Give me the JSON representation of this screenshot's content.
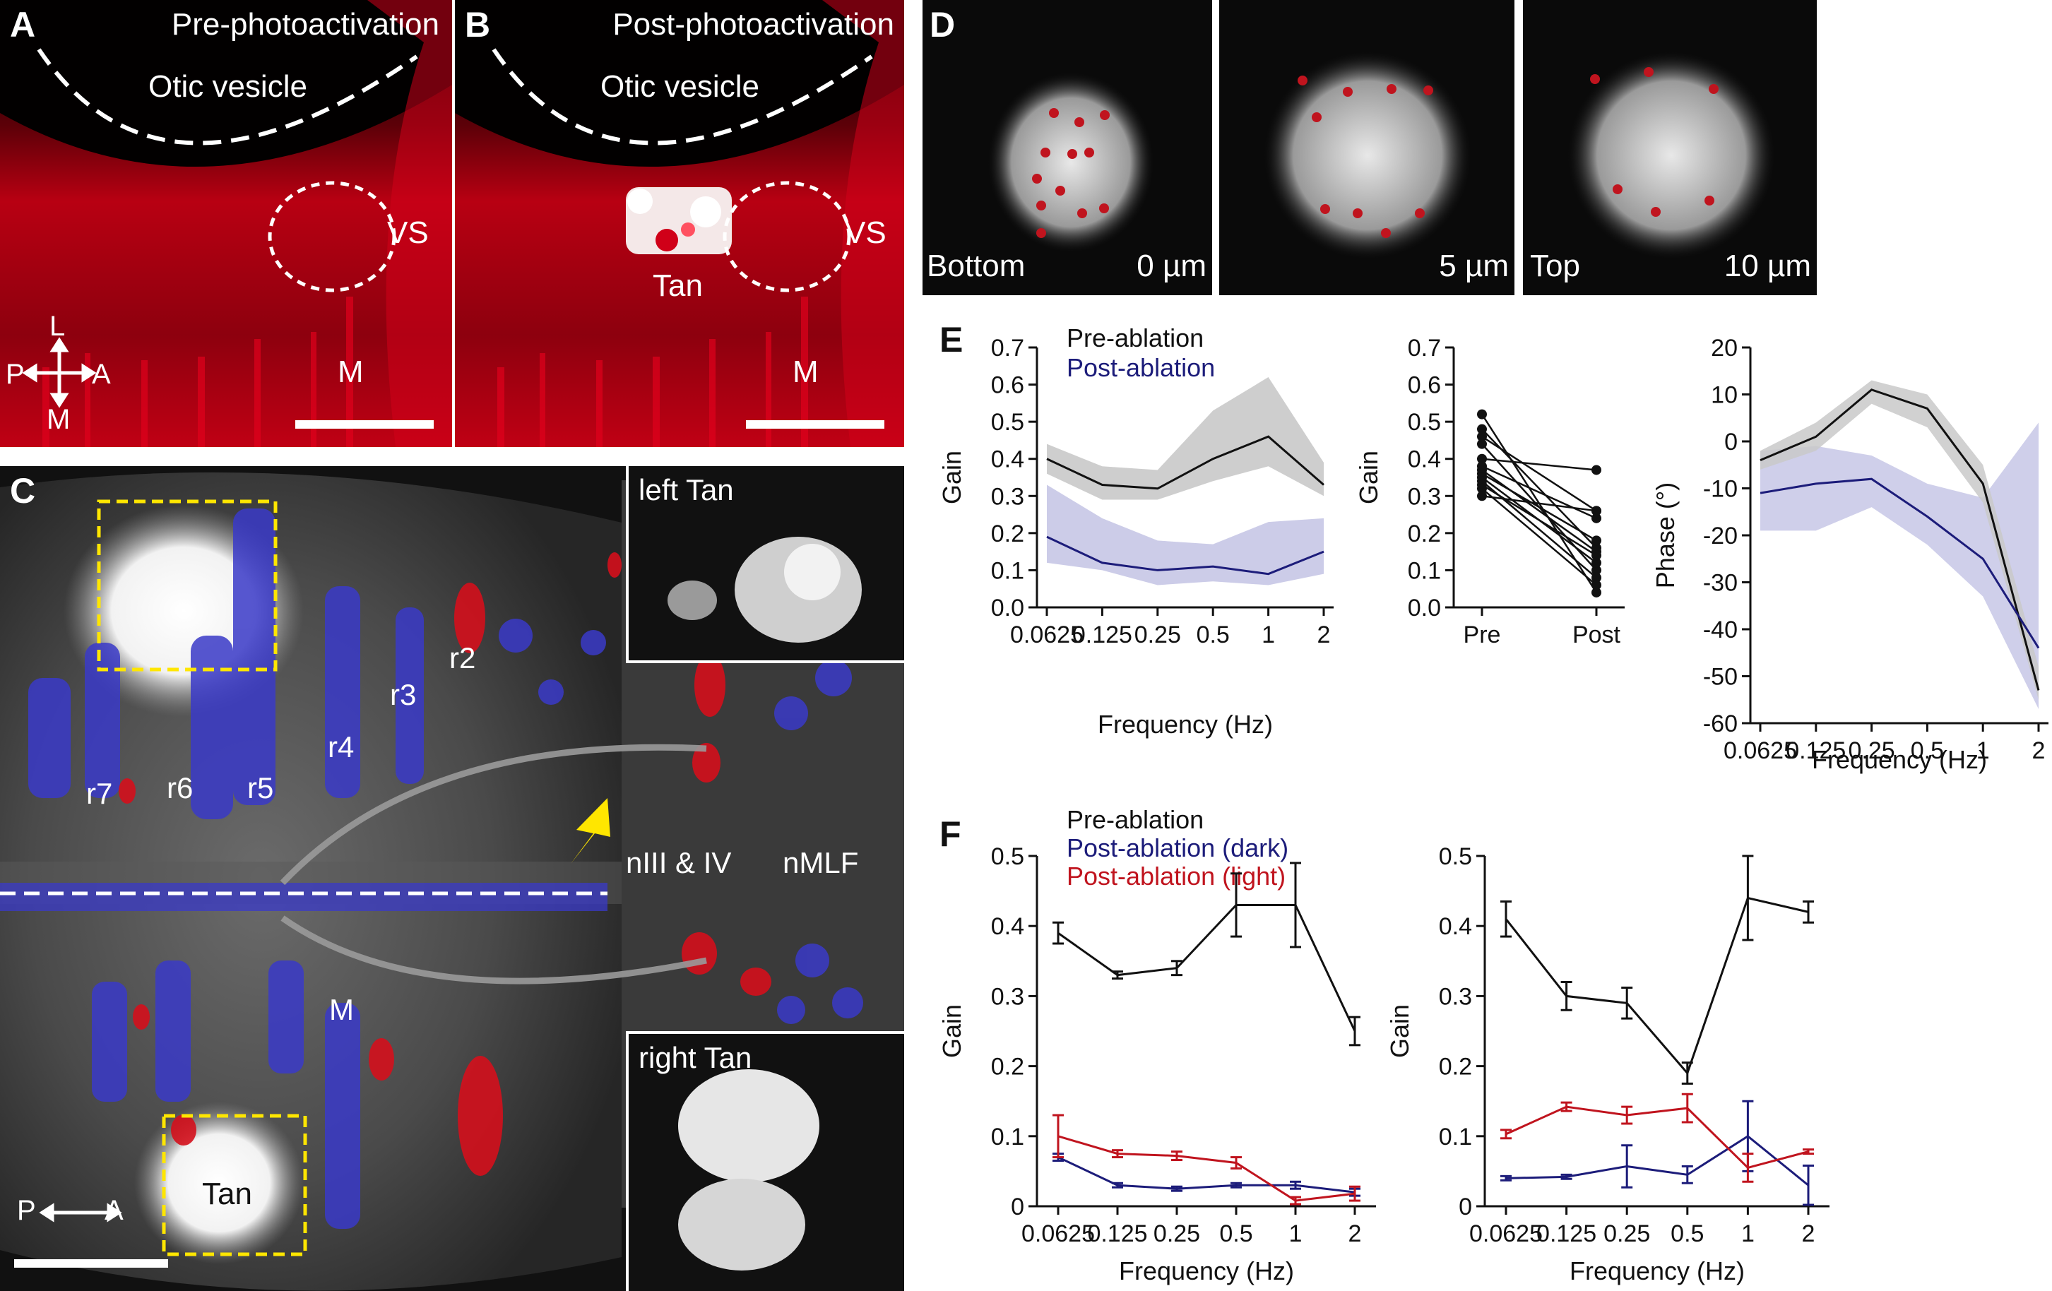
{
  "panelA": {
    "letter": "A",
    "title": "Pre-photoactivation",
    "otic": "Otic vesicle",
    "vs": "VS",
    "m": "M",
    "axisL": "L",
    "axisP": "P",
    "axisA": "A",
    "axisM": "M"
  },
  "panelB": {
    "letter": "B",
    "title": "Post-photoactivation",
    "otic": "Otic vesicle",
    "vs": "VS",
    "tan": "Tan",
    "m": "M"
  },
  "panelC": {
    "letter": "C",
    "r7": "r7",
    "r6": "r6",
    "r5": "r5",
    "r4": "r4",
    "r3": "r3",
    "r2": "r2",
    "niii": "nIII & IV",
    "nmlf": "nMLF",
    "m": "M",
    "tan": "Tan",
    "axisP": "P",
    "axisA": "A",
    "leftTan": "left Tan",
    "rightTan": "right Tan"
  },
  "panelD": {
    "letter": "D",
    "img1_left": "Bottom",
    "img1_right": "0 µm",
    "img2_right": "5 µm",
    "img3_left": "Top",
    "img3_right": "10 µm"
  },
  "colors": {
    "pre": "#111111",
    "postDark": "#1c1c7a",
    "postLight": "#c0141e",
    "preBand": "#c9c9c9",
    "postBand": "#c7c7e6",
    "red": "#d40f1c",
    "blue": "#3a3ac8",
    "yellow": "#ffe600"
  },
  "panelE": {
    "letter": "E",
    "legendPre": "Pre-ablation",
    "legendPost": "Post-ablation",
    "chart1": {
      "ylabel": "Gain",
      "xlabel": "Frequency (Hz)",
      "yticks": [
        "0.0",
        "0.1",
        "0.2",
        "0.3",
        "0.4",
        "0.5",
        "0.6",
        "0.7"
      ],
      "xticks": [
        "0.0625",
        "0.125",
        "0.25",
        "0.5",
        "1",
        "2"
      ]
    },
    "chart2": {
      "ylabel": "Gain",
      "xticks": [
        "Pre",
        "Post"
      ],
      "yticks": [
        "0.0",
        "0.1",
        "0.2",
        "0.3",
        "0.4",
        "0.5",
        "0.6",
        "0.7"
      ]
    },
    "chart3": {
      "ylabel": "Phase (°)",
      "xlabel": "Frequency (Hz)",
      "yticks": [
        "20",
        "10",
        "0",
        "-10",
        "-20",
        "-30",
        "-40",
        "-50",
        "-60"
      ],
      "xticks": [
        "0.0625",
        "0.125",
        "0.25",
        "0.5",
        "1",
        "2"
      ]
    }
  },
  "panelF": {
    "letter": "F",
    "legendPre": "Pre-ablation",
    "legendDark": "Post-ablation (dark)",
    "legendLight": "Post-ablation (light)",
    "chart1": {
      "ylabel": "Gain",
      "xlabel": "Frequency (Hz)",
      "yticks": [
        "0",
        "0.1",
        "0.2",
        "0.3",
        "0.4",
        "0.5"
      ],
      "xticks": [
        "0.0625",
        "0.125",
        "0.25",
        "0.5",
        "1",
        "2"
      ]
    },
    "chart2": {
      "ylabel": "Gain",
      "xlabel": "Frequency (Hz)",
      "yticks": [
        "0",
        "0.1",
        "0.2",
        "0.3",
        "0.4",
        "0.5"
      ],
      "xticks": [
        "0.0625",
        "0.125",
        "0.25",
        "0.5",
        "1",
        "2"
      ]
    }
  },
  "chart_data": [
    {
      "type": "line",
      "panel": "E-left",
      "xlabel": "Frequency (Hz)",
      "ylabel": "Gain",
      "ylim": [
        0,
        0.7
      ],
      "categories": [
        "0.0625",
        "0.125",
        "0.25",
        "0.5",
        "1",
        "2"
      ],
      "series": [
        {
          "name": "Pre-ablation",
          "values": [
            0.4,
            0.33,
            0.32,
            0.4,
            0.46,
            0.33
          ],
          "band_low": [
            0.36,
            0.29,
            0.29,
            0.34,
            0.38,
            0.3
          ],
          "band_high": [
            0.44,
            0.38,
            0.37,
            0.53,
            0.62,
            0.39
          ]
        },
        {
          "name": "Post-ablation",
          "values": [
            0.19,
            0.12,
            0.1,
            0.11,
            0.09,
            0.15
          ],
          "band_low": [
            0.12,
            0.1,
            0.06,
            0.07,
            0.06,
            0.09
          ],
          "band_high": [
            0.33,
            0.24,
            0.18,
            0.17,
            0.23,
            0.24
          ]
        }
      ]
    },
    {
      "type": "line",
      "panel": "E-middle",
      "ylabel": "Gain",
      "ylim": [
        0,
        0.7
      ],
      "categories": [
        "Pre",
        "Post"
      ],
      "pairs": [
        [
          0.52,
          0.04
        ],
        [
          0.48,
          0.16
        ],
        [
          0.46,
          0.26
        ],
        [
          0.44,
          0.1
        ],
        [
          0.4,
          0.37
        ],
        [
          0.38,
          0.24
        ],
        [
          0.37,
          0.15
        ],
        [
          0.36,
          0.18
        ],
        [
          0.35,
          0.12
        ],
        [
          0.34,
          0.08
        ],
        [
          0.33,
          0.14
        ],
        [
          0.32,
          0.06
        ],
        [
          0.3,
          0.26
        ]
      ]
    },
    {
      "type": "line",
      "panel": "E-right",
      "xlabel": "Frequency (Hz)",
      "ylabel": "Phase (°)",
      "ylim": [
        -60,
        20
      ],
      "categories": [
        "0.0625",
        "0.125",
        "0.25",
        "0.5",
        "1",
        "2"
      ],
      "series": [
        {
          "name": "Pre-ablation",
          "values": [
            -4,
            1,
            11,
            7,
            -9,
            -53
          ],
          "band_low": [
            -6,
            -2,
            8,
            3,
            -13,
            -55
          ],
          "band_high": [
            -2,
            4,
            13,
            10,
            -5,
            -48
          ]
        },
        {
          "name": "Post-ablation",
          "values": [
            -11,
            -9,
            -8,
            -16,
            -25,
            -44
          ],
          "band_low": [
            -19,
            -19,
            -14,
            -22,
            -33,
            -57
          ],
          "band_high": [
            -2,
            -1,
            -3,
            -9,
            -12,
            4
          ]
        }
      ]
    },
    {
      "type": "line",
      "panel": "F-left",
      "xlabel": "Frequency (Hz)",
      "ylabel": "Gain",
      "ylim": [
        0,
        0.5
      ],
      "categories": [
        "0.0625",
        "0.125",
        "0.25",
        "0.5",
        "1",
        "2"
      ],
      "series": [
        {
          "name": "Pre-ablation",
          "values": [
            0.39,
            0.33,
            0.34,
            0.43,
            0.43,
            0.25
          ],
          "err": [
            0.015,
            0.005,
            0.01,
            0.045,
            0.06,
            0.02
          ]
        },
        {
          "name": "Post-ablation (dark)",
          "values": [
            0.07,
            0.03,
            0.025,
            0.03,
            0.03,
            0.02
          ],
          "err": [
            0.005,
            0.003,
            0.003,
            0.003,
            0.005,
            0.005
          ]
        },
        {
          "name": "Post-ablation (light)",
          "values": [
            0.1,
            0.075,
            0.072,
            0.062,
            0.008,
            0.018
          ],
          "err": [
            0.03,
            0.005,
            0.006,
            0.008,
            0.005,
            0.01
          ]
        }
      ]
    },
    {
      "type": "line",
      "panel": "F-right",
      "xlabel": "Frequency (Hz)",
      "ylabel": "Gain",
      "ylim": [
        0,
        0.5
      ],
      "categories": [
        "0.0625",
        "0.125",
        "0.25",
        "0.5",
        "1",
        "2"
      ],
      "series": [
        {
          "name": "Pre-ablation",
          "values": [
            0.41,
            0.3,
            0.29,
            0.19,
            0.44,
            0.42
          ],
          "err": [
            0.025,
            0.02,
            0.022,
            0.015,
            0.06,
            0.015
          ]
        },
        {
          "name": "Post-ablation (dark)",
          "values": [
            0.04,
            0.042,
            0.057,
            0.045,
            0.1,
            0.03
          ],
          "err": [
            0.003,
            0.003,
            0.03,
            0.012,
            0.05,
            0.028
          ]
        },
        {
          "name": "Post-ablation (light)",
          "values": [
            0.103,
            0.142,
            0.13,
            0.14,
            0.055,
            0.078
          ],
          "err": [
            0.006,
            0.006,
            0.012,
            0.02,
            0.02,
            0.003
          ]
        }
      ]
    }
  ]
}
